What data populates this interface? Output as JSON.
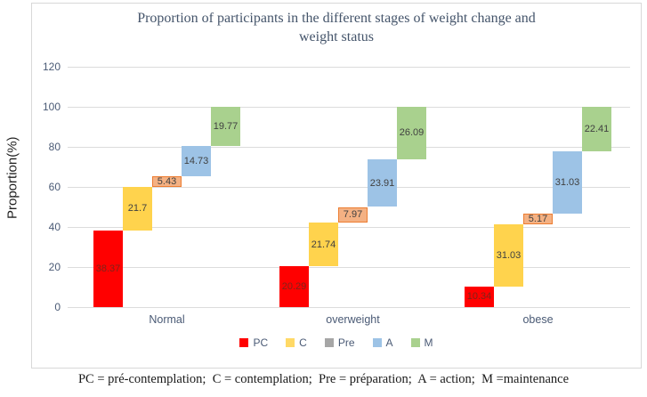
{
  "chart": {
    "title_lines": [
      "Proportion of participants in the different stages of weight change and",
      "weight status"
    ],
    "y_axis_title": "Proportion(%)"
  },
  "footnote": "PC = pré-contemplation;  C = contemplation;  Pre = préparation;  A = action;  M =maintenance",
  "chart_data": {
    "type": "bar",
    "variant": "waterfall-stacked",
    "title": "Proportion of participants in the different stages of weight change and weight status",
    "xlabel": "",
    "ylabel": "Proportion(%)",
    "ylim": [
      0,
      120
    ],
    "yticks": [
      0,
      20,
      40,
      60,
      80,
      100,
      120
    ],
    "grid": true,
    "categories": [
      "Normal",
      "overweight",
      "obese"
    ],
    "series": [
      {
        "name": "PC",
        "bar_color": "#FF0000",
        "label_color": "#7e241a",
        "values": [
          38.37,
          20.29,
          10.34
        ]
      },
      {
        "name": "C",
        "bar_color": "#FFD34D",
        "label_color": "#404040",
        "values": [
          21.7,
          21.74,
          31.03
        ]
      },
      {
        "name": "Pre",
        "bar_color": "#F4B183",
        "border_color": "#ED7D31",
        "label_color": "#404040",
        "values": [
          5.43,
          7.97,
          5.17
        ]
      },
      {
        "name": "A",
        "bar_color": "#9DC3E6",
        "label_color": "#404040",
        "values": [
          14.73,
          23.91,
          31.03
        ]
      },
      {
        "name": "M",
        "bar_color": "#A9D18E",
        "label_color": "#404040",
        "values": [
          19.77,
          26.09,
          22.41
        ]
      }
    ],
    "legend": {
      "position": "bottom",
      "items": [
        {
          "label": "PC",
          "color": "#FF0000"
        },
        {
          "label": "C",
          "color": "#FFD966"
        },
        {
          "label": "Pre",
          "color": "#A6A6A6"
        },
        {
          "label": "A",
          "color": "#9DC3E6"
        },
        {
          "label": "M",
          "color": "#A9D18E"
        }
      ]
    }
  }
}
